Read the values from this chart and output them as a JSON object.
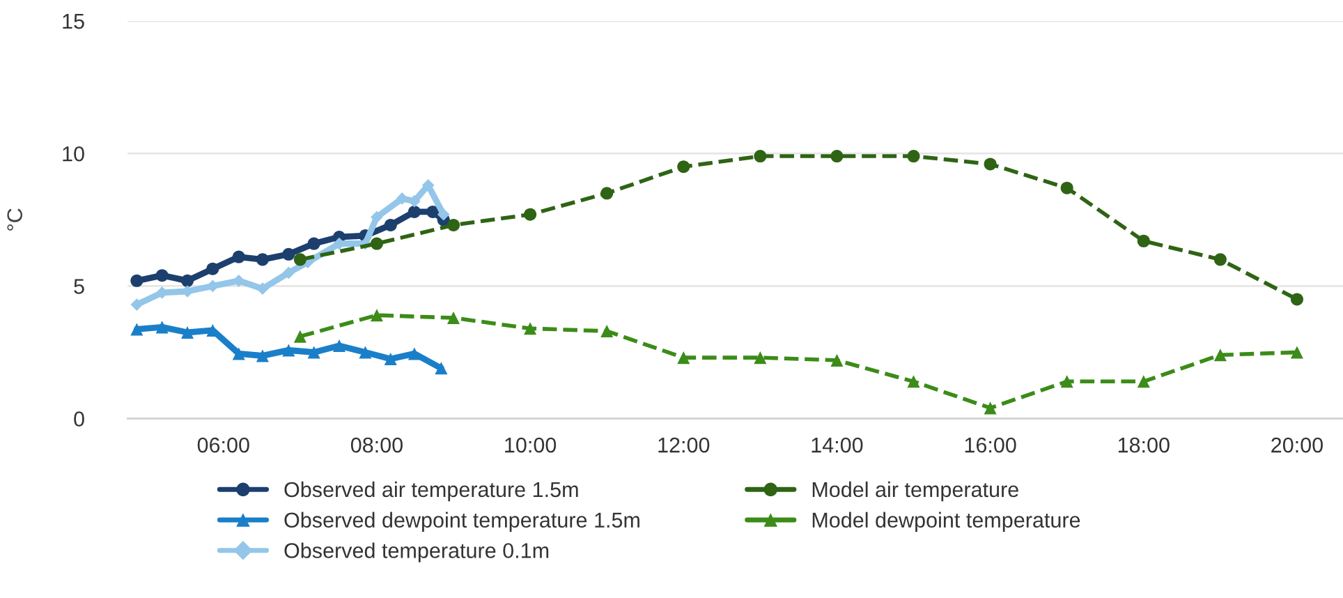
{
  "chart_data": {
    "type": "line",
    "ylabel": "°C",
    "xlim": [
      4.75,
      20.6
    ],
    "ylim": [
      0,
      15
    ],
    "yticks": [
      0,
      5,
      10,
      15
    ],
    "xticks": [
      {
        "value": 6,
        "label": "06:00"
      },
      {
        "value": 8,
        "label": "08:00"
      },
      {
        "value": 10,
        "label": "10:00"
      },
      {
        "value": 12,
        "label": "12:00"
      },
      {
        "value": 14,
        "label": "14:00"
      },
      {
        "value": 16,
        "label": "16:00"
      },
      {
        "value": 18,
        "label": "18:00"
      },
      {
        "value": 20,
        "label": "20:00"
      }
    ],
    "grid": "y",
    "legend": "bottom",
    "series": [
      {
        "name": "Observed air temperature 1.5m",
        "color": "#1c3f6e",
        "marker": "circle",
        "line_style": "solid",
        "x": [
          4.87,
          5.2,
          5.53,
          5.86,
          6.2,
          6.51,
          6.85,
          7.18,
          7.51,
          7.85,
          8.18,
          8.49,
          8.73,
          8.87
        ],
        "values": [
          5.2,
          5.4,
          5.2,
          5.65,
          6.1,
          6.0,
          6.2,
          6.6,
          6.85,
          6.9,
          7.3,
          7.8,
          7.8,
          7.5
        ]
      },
      {
        "name": "Observed dewpoint temperature 1.5m",
        "color": "#1a7fc9",
        "marker": "triangle",
        "line_style": "solid",
        "x": [
          4.87,
          5.2,
          5.53,
          5.86,
          6.2,
          6.51,
          6.85,
          7.18,
          7.51,
          7.85,
          8.18,
          8.49,
          8.84
        ],
        "values": [
          3.37,
          3.45,
          3.25,
          3.33,
          2.45,
          2.37,
          2.58,
          2.5,
          2.75,
          2.5,
          2.25,
          2.45,
          1.9
        ]
      },
      {
        "name": "Observed temperature 0.1m",
        "color": "#93c6e9",
        "marker": "diamond",
        "line_style": "solid",
        "x": [
          4.87,
          5.2,
          5.53,
          5.86,
          6.2,
          6.51,
          6.85,
          7.1,
          7.51,
          7.85,
          8.0,
          8.33,
          8.49,
          8.67,
          8.87
        ],
        "values": [
          4.3,
          4.75,
          4.8,
          5.0,
          5.2,
          4.9,
          5.5,
          5.9,
          6.6,
          6.6,
          7.6,
          8.3,
          8.2,
          8.8,
          7.7
        ]
      },
      {
        "name": "Model air temperature",
        "color": "#2e6414",
        "marker": "circle",
        "line_style": "dashed",
        "x": [
          7,
          8,
          9,
          10,
          11,
          12,
          13,
          14,
          15,
          16,
          17,
          18,
          19,
          20
        ],
        "values": [
          6.0,
          6.6,
          7.3,
          7.7,
          8.5,
          9.5,
          9.9,
          9.9,
          9.9,
          9.6,
          8.7,
          6.7,
          6.0,
          4.5
        ]
      },
      {
        "name": "Model dewpoint temperature",
        "color": "#3b8c18",
        "marker": "triangle",
        "line_style": "dashed",
        "x": [
          7,
          8,
          9,
          10,
          11,
          12,
          13,
          14,
          15,
          16,
          17,
          18,
          19,
          20
        ],
        "values": [
          3.1,
          3.9,
          3.8,
          3.4,
          3.3,
          2.3,
          2.3,
          2.2,
          1.4,
          0.4,
          1.4,
          1.4,
          2.4,
          2.5
        ]
      }
    ]
  }
}
